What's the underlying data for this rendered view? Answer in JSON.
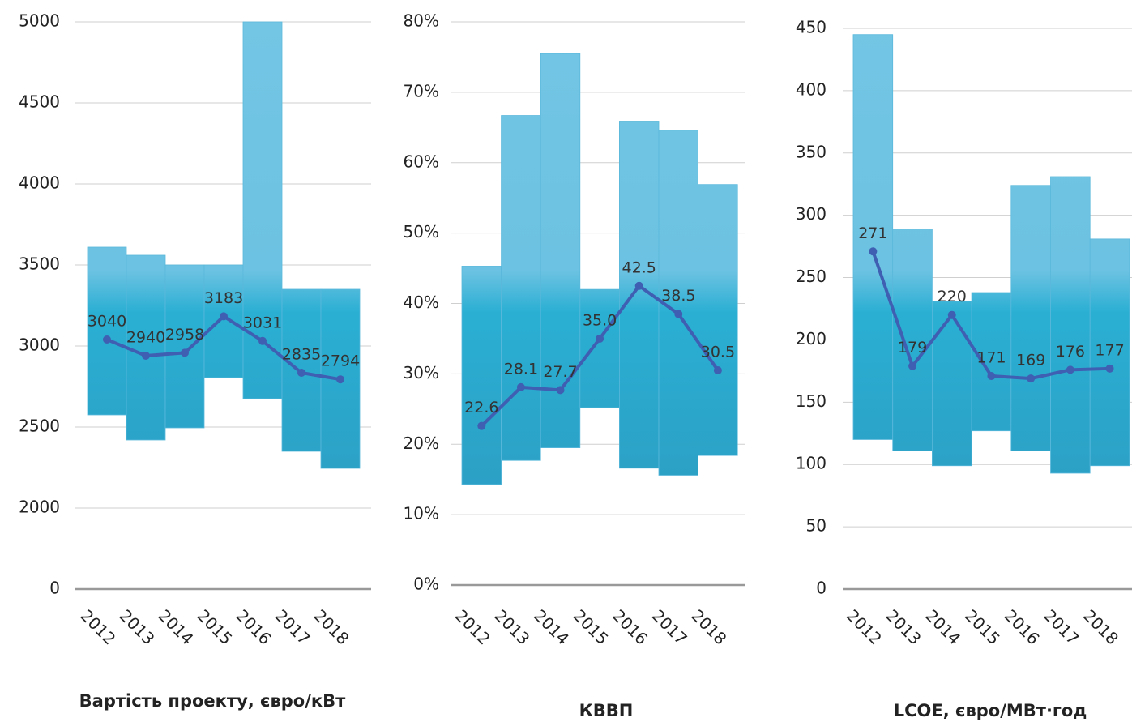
{
  "chart_data": [
    {
      "type": "range",
      "title": "Вартість проекту, євро/кВт",
      "categories": [
        "2012",
        "2013",
        "2014",
        "2015",
        "2016",
        "2017",
        "2018"
      ],
      "low": [
        2575,
        2420,
        2495,
        2805,
        2675,
        2350,
        2245
      ],
      "high": [
        3610,
        3560,
        3500,
        3500,
        5000,
        3350,
        3350
      ],
      "values": [
        3040,
        2940,
        2958,
        3183,
        3031,
        2835,
        2794
      ],
      "ylim": [
        0,
        5000
      ],
      "yticks": [
        0,
        2000,
        2500,
        3000,
        3500,
        4000,
        4500,
        5000
      ],
      "axis_break": true,
      "grid": true,
      "color": "#2db0d3",
      "line_color": "#3f5fb2"
    },
    {
      "type": "range",
      "title": "КВВП",
      "categories": [
        "2012",
        "2013",
        "2014",
        "2015",
        "2016",
        "2017",
        "2018"
      ],
      "low": [
        14.3,
        17.7,
        19.5,
        25.2,
        16.6,
        15.6,
        18.4
      ],
      "high": [
        45.3,
        66.7,
        75.5,
        42.0,
        65.9,
        64.6,
        56.9
      ],
      "values": [
        22.6,
        28.1,
        27.7,
        35,
        42.5,
        38.5,
        30.5
      ],
      "value_labels": [
        "22.6",
        "28.1",
        "27.7",
        "35.0",
        "42.5",
        "38.5",
        "30.5"
      ],
      "ylim": [
        0,
        80
      ],
      "yticks": [
        {
          "value": 0,
          "label": "0%"
        },
        {
          "value": 10,
          "label": "10%"
        },
        {
          "value": 20,
          "label": "20%"
        },
        {
          "value": 30,
          "label": "30%"
        },
        {
          "value": 40,
          "label": "40%"
        },
        {
          "value": 50,
          "label": "50%"
        },
        {
          "value": 60,
          "label": "60%"
        },
        {
          "value": 70,
          "label": "70%"
        },
        {
          "value": 80,
          "label": "80%"
        }
      ],
      "grid": true,
      "color": "#2db0d3",
      "line_color": "#3f5fb2"
    },
    {
      "type": "range",
      "title": "LCOE, євро/МВт·год",
      "categories": [
        "2012",
        "2013",
        "2014",
        "2015",
        "2016",
        "2017",
        "2018"
      ],
      "low": [
        120,
        111,
        99,
        127,
        111,
        93,
        99
      ],
      "high": [
        445,
        289,
        231,
        238,
        324,
        331,
        281
      ],
      "values": [
        271,
        179,
        220,
        171,
        169,
        176,
        177
      ],
      "ylim": [
        0,
        450
      ],
      "yticks": [
        0,
        50,
        100,
        150,
        200,
        250,
        300,
        350,
        400,
        450
      ],
      "grid": true,
      "color": "#2db0d3",
      "line_color": "#3f5fb2"
    }
  ]
}
